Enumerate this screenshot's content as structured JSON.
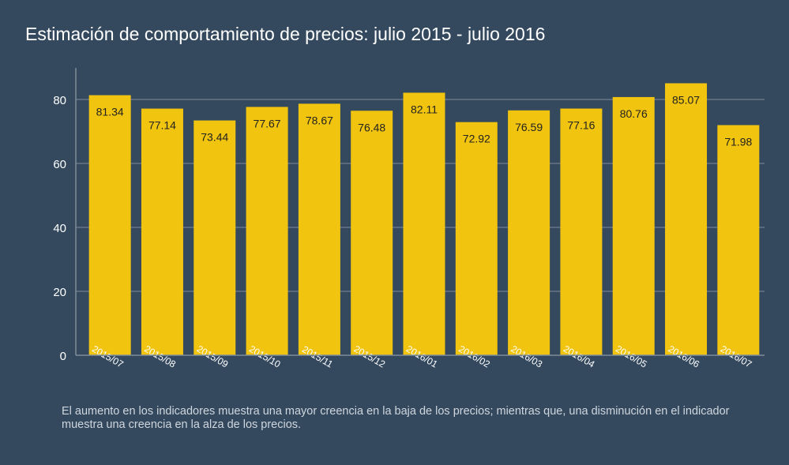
{
  "title": "Estimación de comportamiento de precios: julio 2015 - julio 2016",
  "footnote": "El aumento en los indicadores muestra una mayor creencia en la baja de los precios; mientras que, una disminución en el indicador muestra una creencia en la alza de los precios.",
  "colors": {
    "background": "#34495e",
    "bar": "#f1c40f",
    "grid": "#7f8c99",
    "text": "#ffffff",
    "label": "#222222"
  },
  "chart_data": {
    "type": "bar",
    "title": "Estimación de comportamiento de precios: julio 2015 - julio 2016",
    "xlabel": "",
    "ylabel": "",
    "categories": [
      "2015/07",
      "2015/08",
      "2015/09",
      "2015/10",
      "2015/11",
      "2015/12",
      "2016/01",
      "2016/02",
      "2016/03",
      "2016/04",
      "2016/05",
      "2016/06",
      "2016/07"
    ],
    "values": [
      81.34,
      77.14,
      73.44,
      77.67,
      78.67,
      76.48,
      82.11,
      72.92,
      76.59,
      77.16,
      80.76,
      85.07,
      71.98
    ],
    "value_labels": [
      "81.34",
      "77.14",
      "73.44",
      "77.67",
      "78.67",
      "76.48",
      "82.11",
      "72.92",
      "76.59",
      "77.16",
      "80.76",
      "85.07",
      "71.98"
    ],
    "yticks": [
      "0",
      "20",
      "40",
      "60",
      "80"
    ],
    "ylim": [
      0,
      90
    ],
    "grid": true,
    "legend": "none"
  }
}
